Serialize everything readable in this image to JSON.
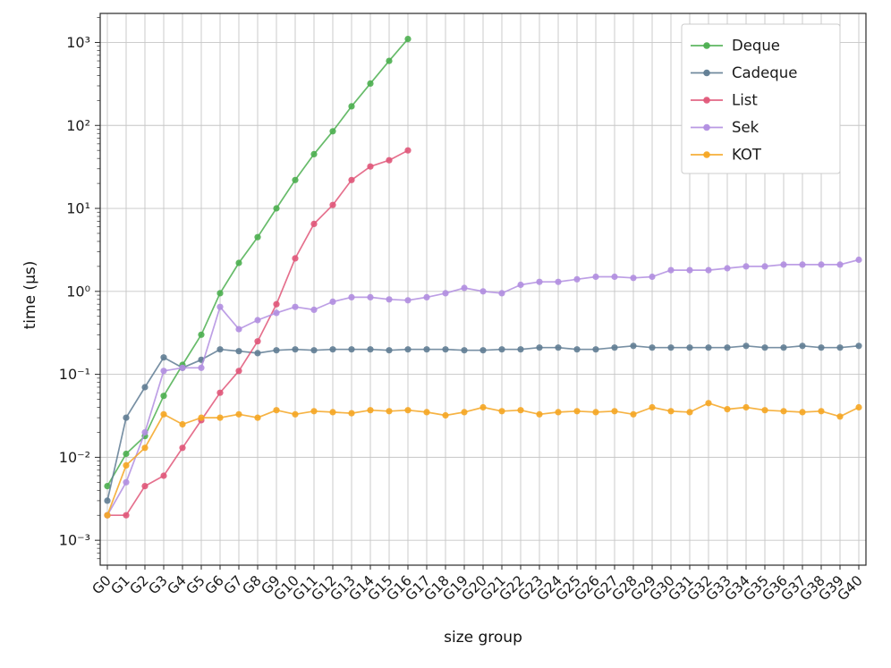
{
  "chart_data": {
    "type": "line",
    "title": "",
    "xlabel": "size group",
    "ylabel": "time (μs)",
    "y_scale": "log",
    "grid": true,
    "legend_position": "upper right",
    "ylim_exponents": [
      -3.3,
      3.35
    ],
    "y_tick_exponents": [
      -3,
      -2,
      -1,
      0,
      1,
      2,
      3
    ],
    "y_tick_labels": [
      "10⁻³",
      "10⁻²",
      "10⁻¹",
      "10⁰",
      "10¹",
      "10²",
      "10³"
    ],
    "x_categories": [
      "G0",
      "G1",
      "G2",
      "G3",
      "G4",
      "G5",
      "G6",
      "G7",
      "G8",
      "G9",
      "G10",
      "G11",
      "G12",
      "G13",
      "G14",
      "G15",
      "G16",
      "G17",
      "G18",
      "G19",
      "G20",
      "G21",
      "G22",
      "G23",
      "G24",
      "G25",
      "G26",
      "G27",
      "G28",
      "G29",
      "G30",
      "G31",
      "G32",
      "G33",
      "G34",
      "G35",
      "G36",
      "G37",
      "G38",
      "G39",
      "G40"
    ],
    "series": [
      {
        "name": "Deque",
        "color": "#4caf50",
        "values": [
          0.0045,
          0.011,
          0.018,
          0.055,
          0.13,
          0.3,
          0.95,
          2.2,
          4.5,
          10,
          22,
          45,
          85,
          170,
          320,
          600,
          1100
        ]
      },
      {
        "name": "Cadeque",
        "color": "#607d94",
        "values": [
          0.003,
          0.03,
          0.07,
          0.16,
          0.12,
          0.15,
          0.2,
          0.19,
          0.18,
          0.195,
          0.2,
          0.195,
          0.2,
          0.2,
          0.2,
          0.195,
          0.2,
          0.2,
          0.2,
          0.195,
          0.195,
          0.2,
          0.2,
          0.21,
          0.21,
          0.2,
          0.2,
          0.21,
          0.22,
          0.21,
          0.21,
          0.21,
          0.21,
          0.21,
          0.22,
          0.21,
          0.21,
          0.22,
          0.21,
          0.21,
          0.22
        ]
      },
      {
        "name": "List",
        "color": "#e05779",
        "values": [
          0.002,
          0.002,
          0.0045,
          0.006,
          0.013,
          0.028,
          0.06,
          0.11,
          0.25,
          0.7,
          2.5,
          6.5,
          11,
          22,
          32,
          38,
          50
        ]
      },
      {
        "name": "Sek",
        "color": "#b18ee0",
        "values": [
          0.002,
          0.005,
          0.02,
          0.11,
          0.12,
          0.12,
          0.65,
          0.35,
          0.45,
          0.55,
          0.65,
          0.6,
          0.75,
          0.85,
          0.85,
          0.8,
          0.78,
          0.85,
          0.95,
          1.1,
          1.0,
          0.95,
          1.2,
          1.3,
          1.3,
          1.4,
          1.5,
          1.5,
          1.45,
          1.5,
          1.8,
          1.8,
          1.8,
          1.9,
          2.0,
          2.0,
          2.1,
          2.1,
          2.1,
          2.1,
          2.4
        ]
      },
      {
        "name": "KOT",
        "color": "#f5a623",
        "values": [
          0.002,
          0.008,
          0.013,
          0.033,
          0.025,
          0.03,
          0.03,
          0.033,
          0.03,
          0.037,
          0.033,
          0.036,
          0.035,
          0.034,
          0.037,
          0.036,
          0.037,
          0.035,
          0.032,
          0.035,
          0.04,
          0.036,
          0.037,
          0.033,
          0.035,
          0.036,
          0.035,
          0.036,
          0.033,
          0.04,
          0.036,
          0.035,
          0.045,
          0.038,
          0.04,
          0.037,
          0.036,
          0.035,
          0.036,
          0.031,
          0.04
        ]
      }
    ]
  }
}
